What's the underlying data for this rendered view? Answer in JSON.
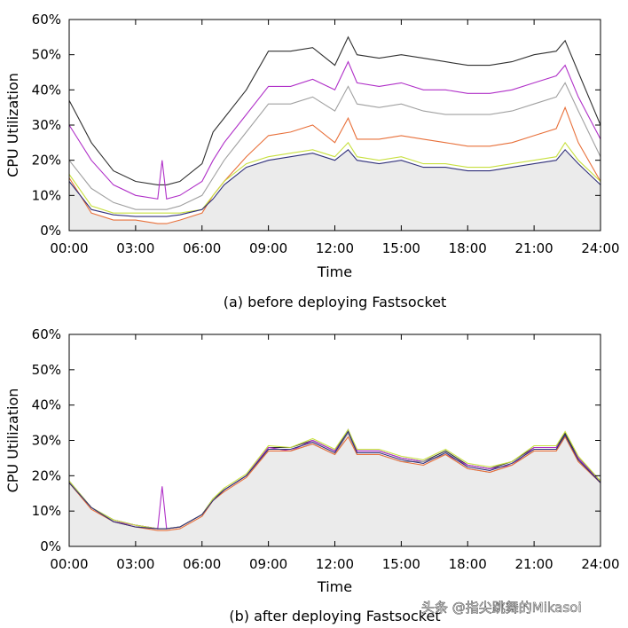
{
  "watermark": "头条 @指尖跳舞的Mikasoi",
  "colors": {
    "band_fill": "#ebebeb",
    "series": [
      "#303030",
      "#b030c8",
      "#a0a0a0",
      "#e8703a",
      "#c8e040",
      "#30307a"
    ]
  },
  "chart_data": [
    {
      "type": "line",
      "caption": "(a) before deploying Fastsocket",
      "xlabel": "Time",
      "ylabel": "CPU Utilization",
      "x_ticks": [
        "00:00",
        "03:00",
        "06:00",
        "09:00",
        "12:00",
        "15:00",
        "18:00",
        "21:00",
        "24:00"
      ],
      "y_ticks": [
        "0%",
        "10%",
        "20%",
        "30%",
        "40%",
        "50%",
        "60%"
      ],
      "xlim": [
        0,
        24
      ],
      "ylim": [
        0,
        60
      ],
      "x": [
        0,
        1,
        2,
        3,
        4,
        4.2,
        4.4,
        5,
        6,
        6.5,
        7,
        8,
        9,
        10,
        11,
        12,
        12.6,
        13,
        14,
        15,
        16,
        17,
        18,
        19,
        20,
        21,
        22,
        22.4,
        23,
        24
      ],
      "series": [
        {
          "values": [
            37,
            25,
            17,
            14,
            13,
            13,
            13,
            14,
            19,
            28,
            32,
            40,
            51,
            51,
            52,
            47,
            55,
            50,
            49,
            50,
            49,
            48,
            47,
            47,
            48,
            50,
            51,
            54,
            45,
            30
          ]
        },
        {
          "values": [
            30,
            20,
            13,
            10,
            9,
            20,
            9,
            10,
            14,
            20,
            25,
            33,
            41,
            41,
            43,
            40,
            48,
            42,
            41,
            42,
            40,
            40,
            39,
            39,
            40,
            42,
            44,
            47,
            38,
            26
          ]
        },
        {
          "values": [
            20,
            12,
            8,
            6,
            6,
            6,
            6,
            7,
            10,
            15,
            20,
            28,
            36,
            36,
            38,
            34,
            41,
            36,
            35,
            36,
            34,
            33,
            33,
            33,
            34,
            36,
            38,
            42,
            34,
            21
          ]
        },
        {
          "values": [
            15,
            5,
            3,
            3,
            2,
            2,
            2,
            3,
            5,
            10,
            14,
            21,
            27,
            28,
            30,
            25,
            32,
            26,
            26,
            27,
            26,
            25,
            24,
            24,
            25,
            27,
            29,
            35,
            25,
            14
          ]
        },
        {
          "values": [
            16,
            7,
            5,
            5,
            5,
            5,
            5,
            5,
            6,
            10,
            14,
            19,
            21,
            22,
            23,
            21,
            25,
            21,
            20,
            21,
            19,
            19,
            18,
            18,
            19,
            20,
            21,
            25,
            20,
            14
          ]
        },
        {
          "values": [
            14,
            6,
            4.5,
            4,
            4,
            4,
            4,
            4.5,
            6,
            9,
            13,
            18,
            20,
            21,
            22,
            20,
            23,
            20,
            19,
            20,
            18,
            18,
            17,
            17,
            18,
            19,
            20,
            23,
            19,
            13
          ]
        }
      ]
    },
    {
      "type": "line",
      "caption": "(b) after deploying Fastsocket",
      "xlabel": "Time",
      "ylabel": "CPU Utilization",
      "x_ticks": [
        "00:00",
        "03:00",
        "06:00",
        "09:00",
        "12:00",
        "15:00",
        "18:00",
        "21:00",
        "24:00"
      ],
      "y_ticks": [
        "0%",
        "10%",
        "20%",
        "30%",
        "40%",
        "50%",
        "60%"
      ],
      "xlim": [
        0,
        24
      ],
      "ylim": [
        0,
        60
      ],
      "x": [
        0,
        1,
        2,
        3,
        4,
        4.2,
        4.4,
        5,
        6,
        6.5,
        7,
        8,
        9,
        10,
        11,
        12,
        12.6,
        13,
        14,
        15,
        16,
        17,
        18,
        19,
        20,
        21,
        22,
        22.4,
        23,
        24
      ],
      "series": [
        {
          "values": [
            18.5,
            11,
            7.5,
            6,
            5,
            5,
            5,
            5.5,
            9,
            13.5,
            16,
            20,
            28,
            28,
            30,
            27,
            33,
            27,
            27,
            25,
            24,
            27,
            23,
            22,
            24,
            28,
            28,
            32,
            25,
            18.5
          ]
        },
        {
          "values": [
            18,
            11,
            7,
            6,
            5,
            17,
            5,
            5.5,
            9,
            13,
            16,
            20,
            28,
            27,
            30,
            27,
            32,
            27,
            27,
            25,
            24,
            26,
            23,
            22,
            23,
            28,
            28,
            31,
            25,
            18
          ]
        },
        {
          "values": [
            18,
            11,
            7,
            5.5,
            5,
            5,
            5,
            5.5,
            9,
            13,
            16,
            20,
            27,
            27,
            29,
            26,
            32,
            26,
            26,
            24,
            24,
            26,
            22,
            21,
            23,
            27,
            27,
            31,
            24,
            18
          ]
        },
        {
          "values": [
            18,
            10.5,
            7,
            5.5,
            4.5,
            4.5,
            4.5,
            5,
            8.5,
            13,
            15.5,
            19.5,
            27,
            27,
            29,
            26,
            31,
            26,
            26,
            24,
            23,
            26,
            22,
            21,
            23,
            27,
            27,
            31,
            24,
            18
          ]
        },
        {
          "values": [
            18.5,
            11,
            7.5,
            6,
            5,
            5,
            5,
            5.5,
            9,
            13.5,
            16.5,
            20.5,
            28.5,
            28,
            30.5,
            27.5,
            33,
            27.5,
            27.5,
            25.5,
            24.5,
            27.5,
            23.5,
            22.5,
            24,
            28.5,
            28.5,
            32.5,
            25.5,
            18.5
          ]
        },
        {
          "values": [
            18,
            11,
            7,
            5.5,
            5,
            5,
            5,
            5.5,
            9,
            13,
            16,
            20,
            27.5,
            27.5,
            29.5,
            26.5,
            32.5,
            26.5,
            26.5,
            24.5,
            23.5,
            26.5,
            22.5,
            21.5,
            23.5,
            27.5,
            27.5,
            31.5,
            24.5,
            18
          ]
        }
      ]
    }
  ]
}
